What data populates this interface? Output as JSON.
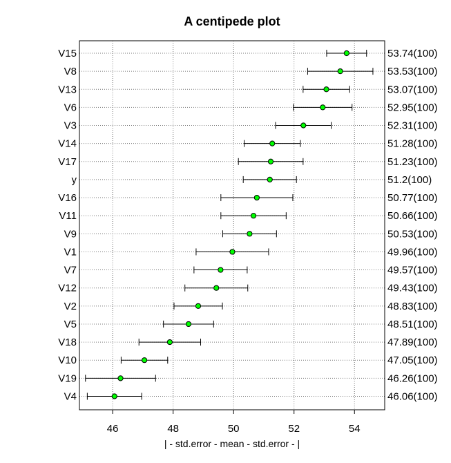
{
  "chart_data": {
    "type": "scatter",
    "title": "A centipede plot",
    "xlabel": "| - std.error - mean - std.error - |",
    "xlim": [
      44.9,
      55.0
    ],
    "xticks": [
      46,
      48,
      50,
      52,
      54
    ],
    "grid": true,
    "point_color": "#00ff00",
    "rows": [
      {
        "name": "V15",
        "mean": 53.74,
        "lower": 53.08,
        "upper": 54.4,
        "label": "53.74(100)"
      },
      {
        "name": "V8",
        "mean": 53.53,
        "lower": 52.45,
        "upper": 54.61,
        "label": "53.53(100)"
      },
      {
        "name": "V13",
        "mean": 53.07,
        "lower": 52.3,
        "upper": 53.84,
        "label": "53.07(100)"
      },
      {
        "name": "V6",
        "mean": 52.95,
        "lower": 51.98,
        "upper": 53.92,
        "label": "52.95(100)"
      },
      {
        "name": "V3",
        "mean": 52.31,
        "lower": 51.39,
        "upper": 53.23,
        "label": "52.31(100)"
      },
      {
        "name": "V14",
        "mean": 51.28,
        "lower": 50.35,
        "upper": 52.21,
        "label": "51.28(100)"
      },
      {
        "name": "V17",
        "mean": 51.23,
        "lower": 50.16,
        "upper": 52.3,
        "label": "51.23(100)"
      },
      {
        "name": "y",
        "mean": 51.2,
        "lower": 50.32,
        "upper": 52.08,
        "label": "51.2(100)"
      },
      {
        "name": "V16",
        "mean": 50.77,
        "lower": 49.58,
        "upper": 51.96,
        "label": "50.77(100)"
      },
      {
        "name": "V11",
        "mean": 50.66,
        "lower": 49.58,
        "upper": 51.74,
        "label": "50.66(100)"
      },
      {
        "name": "V9",
        "mean": 50.53,
        "lower": 49.64,
        "upper": 51.42,
        "label": "50.53(100)"
      },
      {
        "name": "V1",
        "mean": 49.96,
        "lower": 48.76,
        "upper": 51.16,
        "label": "49.96(100)"
      },
      {
        "name": "V7",
        "mean": 49.57,
        "lower": 48.69,
        "upper": 50.45,
        "label": "49.57(100)"
      },
      {
        "name": "V12",
        "mean": 49.43,
        "lower": 48.39,
        "upper": 50.47,
        "label": "49.43(100)"
      },
      {
        "name": "V2",
        "mean": 48.83,
        "lower": 48.03,
        "upper": 49.63,
        "label": "48.83(100)"
      },
      {
        "name": "V5",
        "mean": 48.51,
        "lower": 47.68,
        "upper": 49.34,
        "label": "48.51(100)"
      },
      {
        "name": "V18",
        "mean": 47.89,
        "lower": 46.87,
        "upper": 48.91,
        "label": "47.89(100)"
      },
      {
        "name": "V10",
        "mean": 47.05,
        "lower": 46.28,
        "upper": 47.82,
        "label": "47.05(100)"
      },
      {
        "name": "V19",
        "mean": 46.26,
        "lower": 45.1,
        "upper": 47.42,
        "label": "46.26(100)"
      },
      {
        "name": "V4",
        "mean": 46.06,
        "lower": 45.16,
        "upper": 46.96,
        "label": "46.06(100)"
      }
    ]
  }
}
